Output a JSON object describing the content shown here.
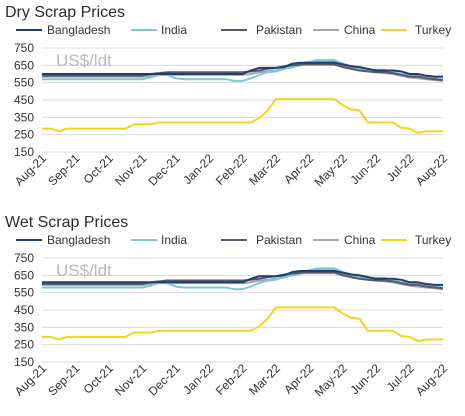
{
  "chart_data": [
    {
      "type": "line",
      "title": "Dry Scrap Prices",
      "unit_label": "US$/ldt",
      "xlabel": "",
      "ylabel": "",
      "ylim": [
        150,
        750
      ],
      "yticks": [
        150,
        250,
        350,
        450,
        550,
        650,
        750
      ],
      "x_tick_labels": [
        "Aug-21",
        "Sep-21",
        "Oct-21",
        "Nov-21",
        "Dec-21",
        "Jan-22",
        "Feb-22",
        "Mar-22",
        "Apr-22",
        "May-22",
        "Jun-22",
        "Jul-22",
        "Aug-22"
      ],
      "grid": "horizontal",
      "legend_position": "top",
      "x": [
        0,
        0.25,
        0.5,
        0.75,
        1,
        1.25,
        1.5,
        1.75,
        2,
        2.25,
        2.5,
        2.75,
        3,
        3.25,
        3.5,
        3.75,
        4,
        4.25,
        4.5,
        4.75,
        5,
        5.25,
        5.5,
        5.75,
        6,
        6.25,
        6.5,
        6.75,
        7,
        7.25,
        7.5,
        7.75,
        8,
        8.25,
        8.5,
        8.75,
        9,
        9.25,
        9.5,
        9.75,
        10,
        10.25,
        10.5,
        10.75,
        11,
        11.25,
        11.5,
        11.75,
        12
      ],
      "series": [
        {
          "name": "Bangladesh",
          "color": "#1f3c73",
          "values": [
            600,
            600,
            600,
            600,
            600,
            600,
            600,
            600,
            600,
            600,
            600,
            600,
            600,
            600,
            600,
            600,
            600,
            600,
            600,
            600,
            600,
            600,
            600,
            600,
            600,
            620,
            635,
            635,
            635,
            640,
            660,
            665,
            665,
            665,
            665,
            665,
            655,
            645,
            640,
            630,
            620,
            620,
            620,
            615,
            600,
            600,
            590,
            585,
            585
          ]
        },
        {
          "name": "India",
          "color": "#7cc9d6",
          "values": [
            570,
            570,
            570,
            570,
            570,
            570,
            570,
            570,
            570,
            570,
            570,
            570,
            570,
            580,
            595,
            595,
            575,
            570,
            570,
            570,
            570,
            570,
            570,
            560,
            560,
            575,
            595,
            610,
            615,
            630,
            640,
            650,
            670,
            680,
            680,
            680,
            660,
            645,
            630,
            625,
            625,
            625,
            610,
            600,
            595,
            590,
            580,
            575,
            570
          ]
        },
        {
          "name": "Pakistan",
          "color": "#555a66",
          "values": [
            590,
            590,
            590,
            590,
            590,
            590,
            590,
            590,
            590,
            590,
            590,
            590,
            590,
            600,
            605,
            610,
            610,
            610,
            610,
            610,
            610,
            610,
            610,
            610,
            610,
            615,
            620,
            630,
            635,
            645,
            650,
            655,
            655,
            655,
            655,
            655,
            640,
            630,
            620,
            615,
            610,
            610,
            605,
            595,
            585,
            585,
            575,
            570,
            565
          ]
        },
        {
          "name": "China",
          "color": "#a6a6a6",
          "values": [
            585,
            585,
            585,
            585,
            585,
            585,
            585,
            585,
            585,
            585,
            585,
            585,
            585,
            590,
            595,
            595,
            595,
            595,
            595,
            595,
            595,
            595,
            595,
            595,
            595,
            600,
            610,
            615,
            620,
            630,
            645,
            660,
            670,
            670,
            670,
            670,
            650,
            635,
            625,
            615,
            610,
            605,
            600,
            590,
            580,
            575,
            570,
            565,
            560
          ]
        },
        {
          "name": "Turkey",
          "color": "#f5d31b",
          "values": [
            285,
            285,
            270,
            285,
            285,
            285,
            285,
            285,
            285,
            285,
            285,
            310,
            310,
            310,
            320,
            320,
            320,
            320,
            320,
            320,
            320,
            320,
            320,
            320,
            320,
            320,
            345,
            390,
            455,
            455,
            455,
            455,
            455,
            455,
            455,
            455,
            420,
            395,
            390,
            320,
            320,
            320,
            320,
            290,
            285,
            260,
            270,
            270,
            270
          ]
        }
      ]
    },
    {
      "type": "line",
      "title": "Wet Scrap Prices",
      "unit_label": "US$/ldt",
      "xlabel": "",
      "ylabel": "",
      "ylim": [
        150,
        750
      ],
      "yticks": [
        150,
        250,
        350,
        450,
        550,
        650,
        750
      ],
      "x_tick_labels": [
        "Aug-21",
        "Sep-21",
        "Oct-21",
        "Nov-21",
        "Dec-21",
        "Jan-22",
        "Feb-22",
        "Mar-22",
        "Apr-22",
        "May-22",
        "Jun-22",
        "Jul-22",
        "Aug-22"
      ],
      "grid": "horizontal",
      "legend_position": "top",
      "x": [
        0,
        0.25,
        0.5,
        0.75,
        1,
        1.25,
        1.5,
        1.75,
        2,
        2.25,
        2.5,
        2.75,
        3,
        3.25,
        3.5,
        3.75,
        4,
        4.25,
        4.5,
        4.75,
        5,
        5.25,
        5.5,
        5.75,
        6,
        6.25,
        6.5,
        6.75,
        7,
        7.25,
        7.5,
        7.75,
        8,
        8.25,
        8.5,
        8.75,
        9,
        9.25,
        9.5,
        9.75,
        10,
        10.25,
        10.5,
        10.75,
        11,
        11.25,
        11.5,
        11.75,
        12
      ],
      "series": [
        {
          "name": "Bangladesh",
          "color": "#1f3c73",
          "values": [
            610,
            610,
            610,
            610,
            610,
            610,
            610,
            610,
            610,
            610,
            610,
            610,
            610,
            610,
            610,
            610,
            610,
            610,
            610,
            610,
            610,
            610,
            610,
            610,
            610,
            630,
            645,
            645,
            645,
            650,
            670,
            675,
            675,
            675,
            675,
            675,
            665,
            655,
            650,
            640,
            630,
            630,
            630,
            625,
            610,
            610,
            600,
            595,
            595
          ]
        },
        {
          "name": "India",
          "color": "#7cc9d6",
          "values": [
            580,
            580,
            580,
            580,
            580,
            580,
            580,
            580,
            580,
            580,
            580,
            580,
            580,
            590,
            605,
            605,
            585,
            580,
            580,
            580,
            580,
            580,
            580,
            570,
            570,
            585,
            605,
            620,
            625,
            640,
            650,
            660,
            680,
            690,
            690,
            690,
            670,
            655,
            640,
            635,
            635,
            635,
            620,
            610,
            605,
            600,
            590,
            585,
            580
          ]
        },
        {
          "name": "Pakistan",
          "color": "#555a66",
          "values": [
            600,
            600,
            600,
            600,
            600,
            600,
            600,
            600,
            600,
            600,
            600,
            600,
            600,
            610,
            615,
            620,
            620,
            620,
            620,
            620,
            620,
            620,
            620,
            620,
            620,
            625,
            630,
            640,
            645,
            655,
            660,
            665,
            665,
            665,
            665,
            665,
            650,
            640,
            630,
            625,
            620,
            620,
            615,
            605,
            595,
            595,
            585,
            580,
            575
          ]
        },
        {
          "name": "China",
          "color": "#a6a6a6",
          "values": [
            595,
            595,
            595,
            595,
            595,
            595,
            595,
            595,
            595,
            595,
            595,
            595,
            595,
            600,
            605,
            605,
            605,
            605,
            605,
            605,
            605,
            605,
            605,
            605,
            605,
            610,
            620,
            625,
            630,
            640,
            655,
            670,
            680,
            680,
            680,
            680,
            660,
            645,
            635,
            625,
            620,
            615,
            610,
            600,
            590,
            585,
            580,
            575,
            570
          ]
        },
        {
          "name": "Turkey",
          "color": "#f5d31b",
          "values": [
            295,
            295,
            280,
            295,
            295,
            295,
            295,
            295,
            295,
            295,
            295,
            320,
            320,
            320,
            330,
            330,
            330,
            330,
            330,
            330,
            330,
            330,
            330,
            330,
            330,
            330,
            355,
            400,
            465,
            465,
            465,
            465,
            465,
            465,
            465,
            465,
            430,
            405,
            400,
            330,
            330,
            330,
            330,
            300,
            295,
            270,
            280,
            280,
            280
          ]
        }
      ]
    }
  ]
}
